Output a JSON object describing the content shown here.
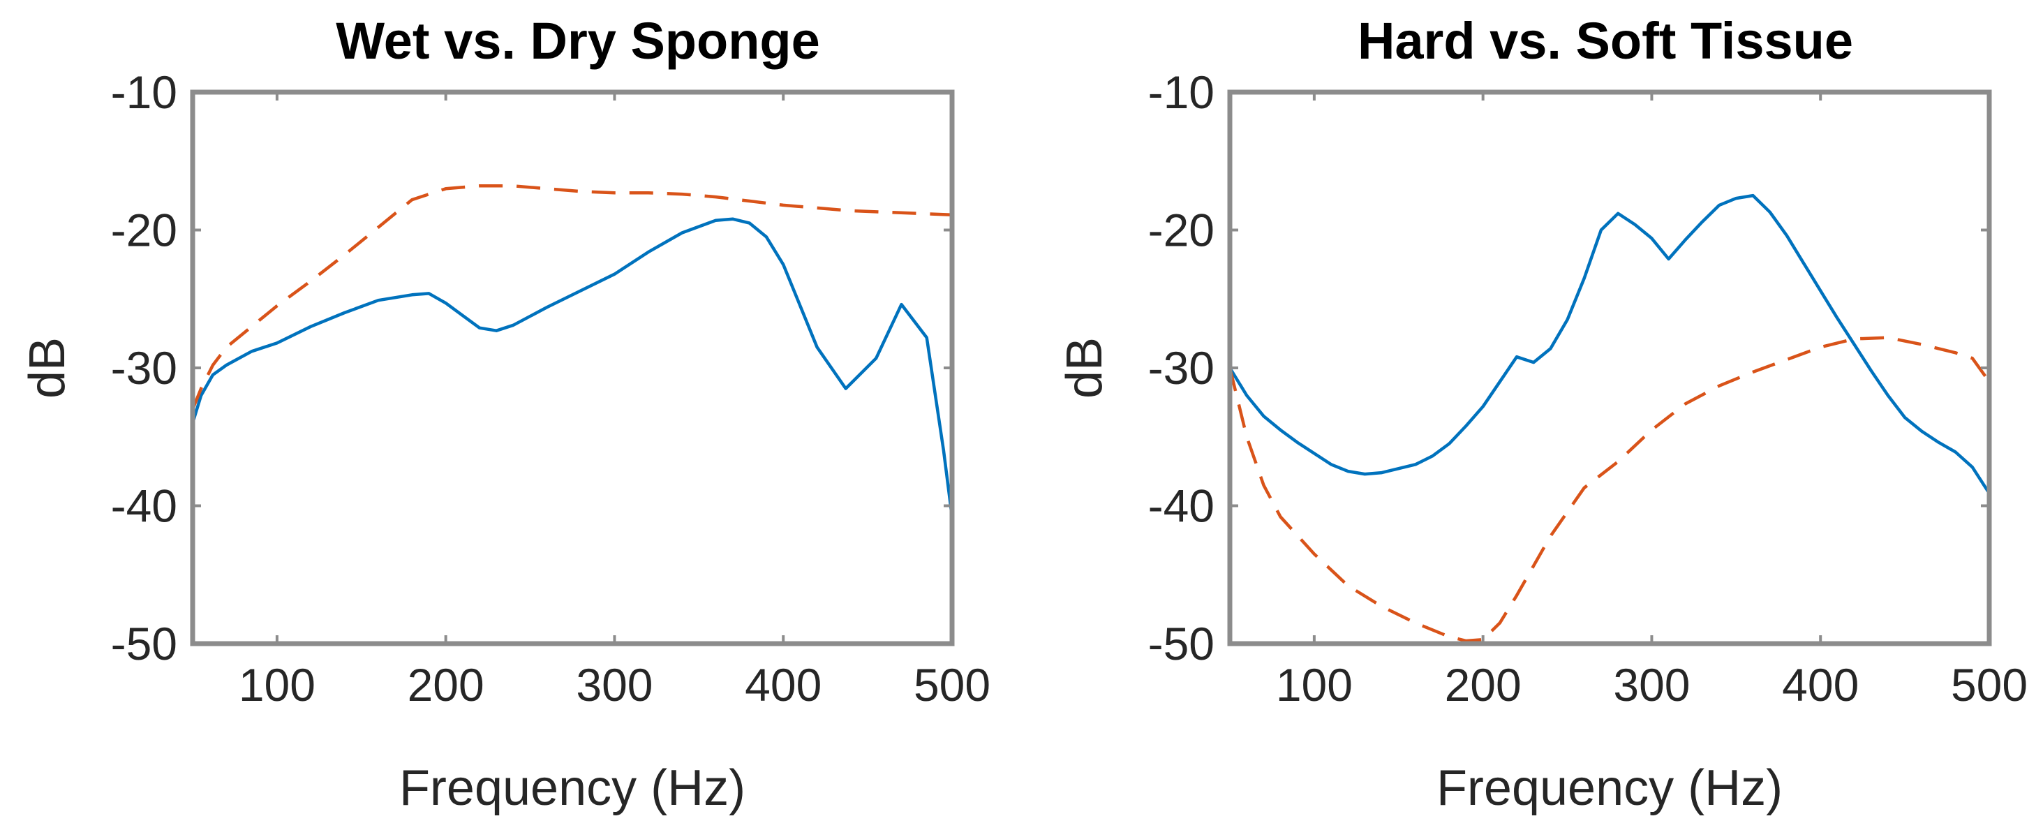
{
  "chart_data": [
    {
      "type": "line",
      "title": "Wet vs. Dry Sponge",
      "xlabel": "Frequency (Hz)",
      "ylabel": "dB",
      "xlim": [
        50,
        500
      ],
      "ylim": [
        -50,
        -10
      ],
      "xticks": [
        100,
        200,
        300,
        400,
        500
      ],
      "yticks": [
        -10,
        -20,
        -30,
        -40,
        -50
      ],
      "grid": false,
      "series": [
        {
          "name": "solid",
          "color": "#0072BD",
          "style": "solid",
          "x": [
            50,
            55,
            62,
            70,
            85,
            100,
            120,
            140,
            160,
            180,
            190,
            200,
            210,
            220,
            230,
            240,
            260,
            280,
            300,
            320,
            340,
            360,
            370,
            380,
            390,
            400,
            410,
            420,
            437,
            455,
            470,
            485,
            495,
            500
          ],
          "y": [
            -34,
            -32,
            -30.5,
            -29.8,
            -28.8,
            -28.2,
            -27,
            -26,
            -25.1,
            -24.7,
            -24.6,
            -25.3,
            -26.2,
            -27.1,
            -27.3,
            -26.9,
            -25.6,
            -24.4,
            -23.2,
            -21.6,
            -20.2,
            -19.3,
            -19.2,
            -19.5,
            -20.5,
            -22.5,
            -25.5,
            -28.5,
            -31.5,
            -29.3,
            -25.4,
            -27.8,
            -36,
            -40.8
          ]
        },
        {
          "name": "dashed",
          "color": "#D95319",
          "style": "dashed",
          "x": [
            50,
            55,
            62,
            70,
            85,
            100,
            120,
            140,
            160,
            180,
            200,
            220,
            240,
            260,
            280,
            300,
            320,
            340,
            360,
            380,
            400,
            420,
            440,
            460,
            480,
            500
          ],
          "y": [
            -33,
            -31.5,
            -29.8,
            -28.5,
            -27,
            -25.5,
            -23.7,
            -21.8,
            -19.8,
            -17.8,
            -17,
            -16.8,
            -16.8,
            -17,
            -17.2,
            -17.3,
            -17.3,
            -17.4,
            -17.6,
            -17.9,
            -18.2,
            -18.4,
            -18.6,
            -18.7,
            -18.8,
            -18.9
          ]
        }
      ]
    },
    {
      "type": "line",
      "title": "Hard vs. Soft Tissue",
      "xlabel": "Frequency (Hz)",
      "ylabel": "dB",
      "xlim": [
        50,
        500
      ],
      "ylim": [
        -50,
        -10
      ],
      "xticks": [
        100,
        200,
        300,
        400,
        500
      ],
      "yticks": [
        -10,
        -20,
        -30,
        -40,
        -50
      ],
      "grid": false,
      "series": [
        {
          "name": "solid",
          "color": "#0072BD",
          "style": "solid",
          "x": [
            50,
            60,
            70,
            80,
            90,
            100,
            110,
            120,
            130,
            140,
            150,
            160,
            170,
            180,
            190,
            200,
            210,
            220,
            230,
            240,
            250,
            260,
            270,
            280,
            290,
            300,
            310,
            320,
            330,
            340,
            350,
            360,
            370,
            380,
            390,
            400,
            410,
            420,
            430,
            440,
            450,
            460,
            470,
            480,
            490,
            500
          ],
          "y": [
            -30,
            -32,
            -33.5,
            -34.5,
            -35.4,
            -36.2,
            -37,
            -37.5,
            -37.7,
            -37.6,
            -37.3,
            -37,
            -36.4,
            -35.5,
            -34.2,
            -32.8,
            -31,
            -29.2,
            -29.6,
            -28.6,
            -26.5,
            -23.5,
            -20,
            -18.8,
            -19.6,
            -20.6,
            -22.1,
            -20.7,
            -19.4,
            -18.2,
            -17.7,
            -17.5,
            -18.7,
            -20.4,
            -22.4,
            -24.4,
            -26.4,
            -28.3,
            -30.2,
            -32,
            -33.6,
            -34.6,
            -35.4,
            -36.1,
            -37.2,
            -39.1
          ]
        },
        {
          "name": "dashed",
          "color": "#D95319",
          "style": "dashed",
          "x": [
            50,
            55,
            60,
            70,
            80,
            100,
            120,
            140,
            160,
            180,
            190,
            200,
            210,
            220,
            240,
            260,
            280,
            300,
            320,
            340,
            360,
            380,
            400,
            420,
            440,
            460,
            480,
            490,
            500
          ],
          "y": [
            -30,
            -32.5,
            -35,
            -38.5,
            -40.8,
            -43.5,
            -45.8,
            -47.3,
            -48.5,
            -49.5,
            -49.8,
            -49.7,
            -48.5,
            -46.5,
            -42.2,
            -38.7,
            -36.8,
            -34.5,
            -32.6,
            -31.3,
            -30.3,
            -29.4,
            -28.5,
            -27.9,
            -27.8,
            -28.3,
            -28.9,
            -29.3,
            -31
          ]
        }
      ]
    }
  ]
}
